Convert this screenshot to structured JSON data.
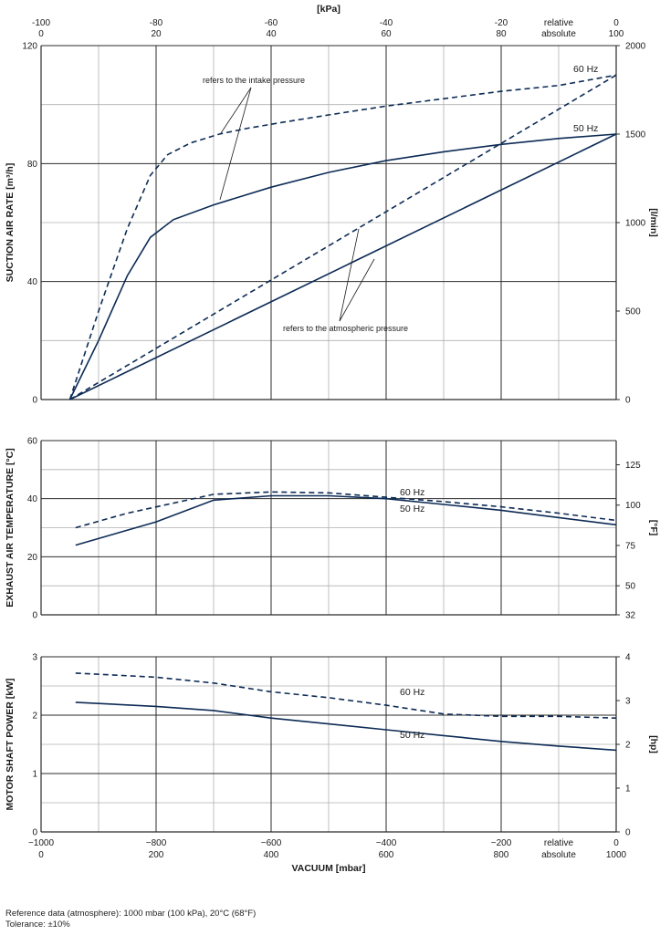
{
  "colors": {
    "line": "#0d2b55",
    "grid_major": "#2b2b2b",
    "grid_minor": "#b0b0b0",
    "text": "#1a1a1a"
  },
  "top_axis": {
    "unit_label": "[kPa]",
    "relative_ticks": [
      "-100",
      "-80",
      "-60",
      "-40",
      "-20",
      "relative",
      "0"
    ],
    "absolute_ticks": [
      "0",
      "20",
      "40",
      "60",
      "80",
      "absolute",
      "100"
    ]
  },
  "bottom_axis": {
    "title": "VACUUM  [mbar]",
    "relative_ticks": [
      "−1000",
      "−800",
      "−600",
      "−400",
      "−200",
      "relative",
      "0"
    ],
    "absolute_ticks": [
      "0",
      "200",
      "400",
      "600",
      "800",
      "absolute",
      "1000"
    ]
  },
  "chart_data": [
    {
      "type": "line",
      "title": "Suction air rate",
      "ylabel": "SUCTION AIR RATE  [m³/h]",
      "ylabel_right": "[l/min]",
      "xlabel": "VACUUM  [mbar]",
      "xlim": [
        0,
        1000
      ],
      "ylim": [
        0,
        120
      ],
      "y_ticks": [
        "0",
        "40",
        "80",
        "120"
      ],
      "y_ticks_right": [
        "0",
        "500",
        "1000",
        "1500",
        "2000"
      ],
      "annotations": [
        "refers to the intake pressure",
        "refers to the atmospheric pressure"
      ],
      "series": [
        {
          "name": "60 Hz (intake pressure)",
          "style": "dashed",
          "label": "60 Hz",
          "x": [
            50,
            100,
            150,
            190,
            220,
            260,
            310,
            360,
            420,
            500,
            600,
            700,
            800,
            900,
            1000
          ],
          "y": [
            0,
            30,
            58,
            76,
            83,
            87,
            90,
            92,
            94,
            96.5,
            99.5,
            102,
            104.5,
            106.5,
            110
          ]
        },
        {
          "name": "50 Hz (intake pressure)",
          "style": "solid",
          "label": "50 Hz",
          "x": [
            50,
            100,
            150,
            190,
            230,
            300,
            400,
            500,
            600,
            700,
            800,
            900,
            1000
          ],
          "y": [
            0,
            20,
            42,
            55,
            61,
            66,
            72,
            77,
            81,
            84,
            86.5,
            88.5,
            90
          ]
        },
        {
          "name": "60 Hz (atmospheric pressure)",
          "style": "dashed",
          "x": [
            50,
            1000
          ],
          "y": [
            0,
            110
          ]
        },
        {
          "name": "50 Hz (atmospheric pressure)",
          "style": "solid",
          "x": [
            50,
            1000
          ],
          "y": [
            0,
            90
          ]
        }
      ]
    },
    {
      "type": "line",
      "title": "Exhaust air temperature",
      "ylabel": "EXHAUST AIR TEMPERATURE  [°C]",
      "ylabel_right": "[°F]",
      "xlabel": "VACUUM  [mbar]",
      "xlim": [
        0,
        1000
      ],
      "ylim": [
        0,
        60
      ],
      "y_ticks": [
        "0",
        "20",
        "40",
        "60"
      ],
      "y_ticks_right": [
        "32",
        "50",
        "75",
        "100",
        "125"
      ],
      "series": [
        {
          "name": "60 Hz",
          "style": "dashed",
          "label": "60 Hz",
          "x": [
            60,
            150,
            300,
            400,
            500,
            600,
            700,
            800,
            900,
            1000
          ],
          "y": [
            30,
            35,
            41.5,
            42.3,
            42,
            40.5,
            39,
            37.2,
            35,
            32.5
          ]
        },
        {
          "name": "50 Hz",
          "style": "solid",
          "label": "50 Hz",
          "x": [
            60,
            200,
            300,
            400,
            500,
            600,
            700,
            800,
            900,
            1000
          ],
          "y": [
            24,
            32,
            39.5,
            41,
            41,
            40,
            38,
            36,
            33.5,
            31
          ]
        }
      ]
    },
    {
      "type": "line",
      "title": "Motor shaft power",
      "ylabel": "MOTOR SHAFT POWER  [kW]",
      "ylabel_right": "[hp]",
      "xlabel": "VACUUM  [mbar]",
      "xlim": [
        0,
        1000
      ],
      "ylim": [
        0,
        3
      ],
      "y_ticks": [
        "0",
        "1",
        "2",
        "3"
      ],
      "y_ticks_right": [
        "0",
        "1",
        "2",
        "3",
        "4"
      ],
      "series": [
        {
          "name": "60 Hz",
          "style": "dashed",
          "label": "60 Hz",
          "x": [
            60,
            200,
            300,
            400,
            500,
            600,
            700,
            800,
            900,
            1000
          ],
          "y": [
            2.72,
            2.65,
            2.55,
            2.4,
            2.3,
            2.17,
            2.02,
            1.98,
            1.98,
            1.95
          ]
        },
        {
          "name": "50 Hz",
          "style": "solid",
          "label": "50 Hz",
          "x": [
            60,
            200,
            300,
            400,
            500,
            600,
            700,
            800,
            900,
            1000
          ],
          "y": [
            2.22,
            2.15,
            2.08,
            1.95,
            1.85,
            1.75,
            1.65,
            1.55,
            1.47,
            1.4
          ]
        }
      ]
    }
  ],
  "footer": {
    "reference": "Reference data (atmosphere): 1000 mbar (100 kPa), 20°C (68°F)",
    "tolerance": "Tolerance: ±10%"
  }
}
